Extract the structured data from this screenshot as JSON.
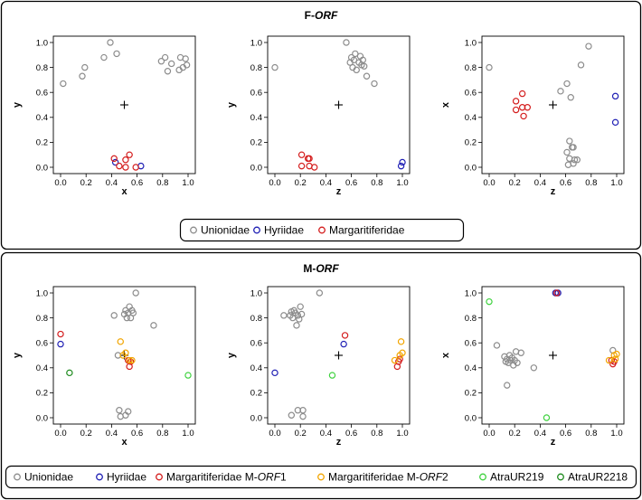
{
  "colors": {
    "Unionidae": "#8c8c8c",
    "Hyriidae": "#1f1fb4",
    "Margaritiferidae": "#d41e1e",
    "Margaritiferidae M-ORF1": "#d41e1e",
    "Margaritiferidae M-ORF2": "#f2a500",
    "AtraUR219": "#3fd23f",
    "AtraUR2218": "#1d8a1d"
  },
  "panels": [
    {
      "title_prefix": "F-",
      "title_italic": "ORF",
      "legend": [
        {
          "key": "Unionidae",
          "label": "Unionidae"
        },
        {
          "key": "Hyriidae",
          "label": "Hyriidae"
        },
        {
          "key": "Margaritiferidae",
          "label": "Margaritiferidae"
        }
      ]
    },
    {
      "title_prefix": "M-",
      "title_italic": "ORF",
      "legend": [
        {
          "key": "Unionidae",
          "label": "Unionidae"
        },
        {
          "key": "Hyriidae",
          "label": "Hyriidae"
        },
        {
          "key": "Margaritiferidae M-ORF1",
          "label": "Margaritiferidae M-",
          "italic": "ORF",
          "suffix": "1"
        },
        {
          "key": "Margaritiferidae M-ORF2",
          "label": "Margaritiferidae M-",
          "italic": "ORF",
          "suffix": "2"
        },
        {
          "key": "AtraUR219",
          "label": "AtraUR219"
        },
        {
          "key": "AtraUR2218",
          "label": "AtraUR2218"
        }
      ]
    }
  ],
  "chart_data": [
    {
      "type": "scatter",
      "panel": 0,
      "title": "F-ORF",
      "xlabel": "x",
      "ylabel": "y",
      "xlim": [
        0,
        1
      ],
      "ylim": [
        0,
        1
      ],
      "ticks": [
        "0.0",
        "0.2",
        "0.4",
        "0.6",
        "0.8",
        "1.0"
      ],
      "centroid": [
        0.5,
        0.5
      ],
      "series": [
        {
          "name": "Unionidae",
          "points": [
            [
              0.02,
              0.67
            ],
            [
              0.17,
              0.73
            ],
            [
              0.19,
              0.8
            ],
            [
              0.34,
              0.88
            ],
            [
              0.39,
              1.0
            ],
            [
              0.44,
              0.91
            ],
            [
              0.79,
              0.85
            ],
            [
              0.82,
              0.88
            ],
            [
              0.84,
              0.77
            ],
            [
              0.87,
              0.83
            ],
            [
              0.93,
              0.78
            ],
            [
              0.94,
              0.88
            ],
            [
              0.96,
              0.8
            ],
            [
              0.98,
              0.87
            ],
            [
              0.99,
              0.82
            ]
          ]
        },
        {
          "name": "Hyriidae",
          "points": [
            [
              0.43,
              0.04
            ],
            [
              0.63,
              0.01
            ]
          ]
        },
        {
          "name": "Margaritiferidae",
          "points": [
            [
              0.42,
              0.07
            ],
            [
              0.46,
              0.01
            ],
            [
              0.51,
              0.06
            ],
            [
              0.51,
              0.0
            ],
            [
              0.54,
              0.1
            ],
            [
              0.59,
              0.0
            ]
          ]
        }
      ]
    },
    {
      "type": "scatter",
      "panel": 0,
      "title": "",
      "xlabel": "z",
      "ylabel": "y",
      "xlim": [
        0,
        1
      ],
      "ylim": [
        0,
        1
      ],
      "ticks": [
        "0.0",
        "0.2",
        "0.4",
        "0.6",
        "0.8",
        "1.0"
      ],
      "centroid": [
        0.5,
        0.5
      ],
      "series": [
        {
          "name": "Unionidae",
          "points": [
            [
              0.0,
              0.8
            ],
            [
              0.56,
              1.0
            ],
            [
              0.59,
              0.84
            ],
            [
              0.6,
              0.88
            ],
            [
              0.61,
              0.8
            ],
            [
              0.62,
              0.86
            ],
            [
              0.63,
              0.91
            ],
            [
              0.64,
              0.78
            ],
            [
              0.66,
              0.84
            ],
            [
              0.67,
              0.89
            ],
            [
              0.68,
              0.82
            ],
            [
              0.69,
              0.86
            ],
            [
              0.7,
              0.81
            ],
            [
              0.72,
              0.73
            ],
            [
              0.78,
              0.67
            ]
          ]
        },
        {
          "name": "Hyriidae",
          "points": [
            [
              0.99,
              0.01
            ],
            [
              1.0,
              0.04
            ]
          ]
        },
        {
          "name": "Margaritiferidae",
          "points": [
            [
              0.21,
              0.1
            ],
            [
              0.21,
              0.01
            ],
            [
              0.26,
              0.07
            ],
            [
              0.27,
              0.07
            ],
            [
              0.27,
              0.01
            ],
            [
              0.31,
              0.0
            ]
          ]
        }
      ]
    },
    {
      "type": "scatter",
      "panel": 0,
      "title": "",
      "xlabel": "z",
      "ylabel": "x",
      "xlim": [
        0,
        1
      ],
      "ylim": [
        0,
        1
      ],
      "ticks": [
        "0.0",
        "0.2",
        "0.4",
        "0.6",
        "0.8",
        "1.0"
      ],
      "centroid": [
        0.5,
        0.5
      ],
      "series": [
        {
          "name": "Unionidae",
          "points": [
            [
              0.0,
              0.8
            ],
            [
              0.56,
              0.61
            ],
            [
              0.61,
              0.67
            ],
            [
              0.64,
              0.56
            ],
            [
              0.63,
              0.21
            ],
            [
              0.65,
              0.16
            ],
            [
              0.66,
              0.16
            ],
            [
              0.61,
              0.12
            ],
            [
              0.63,
              0.07
            ],
            [
              0.67,
              0.06
            ],
            [
              0.69,
              0.06
            ],
            [
              0.66,
              0.03
            ],
            [
              0.62,
              0.02
            ],
            [
              0.72,
              0.82
            ],
            [
              0.78,
              0.97
            ]
          ]
        },
        {
          "name": "Hyriidae",
          "points": [
            [
              0.99,
              0.57
            ],
            [
              0.99,
              0.36
            ]
          ]
        },
        {
          "name": "Margaritiferidae",
          "points": [
            [
              0.21,
              0.53
            ],
            [
              0.21,
              0.46
            ],
            [
              0.26,
              0.59
            ],
            [
              0.26,
              0.48
            ],
            [
              0.3,
              0.48
            ],
            [
              0.27,
              0.41
            ]
          ]
        }
      ]
    },
    {
      "type": "scatter",
      "panel": 1,
      "title": "M-ORF",
      "xlabel": "x",
      "ylabel": "y",
      "xlim": [
        0,
        1
      ],
      "ylim": [
        0,
        1
      ],
      "ticks": [
        "0.0",
        "0.2",
        "0.4",
        "0.6",
        "0.8",
        "1.0"
      ],
      "centroid": [
        0.5,
        0.5
      ],
      "series": [
        {
          "name": "Unionidae",
          "points": [
            [
              0.42,
              0.82
            ],
            [
              0.5,
              0.83
            ],
            [
              0.51,
              0.86
            ],
            [
              0.52,
              0.8
            ],
            [
              0.53,
              0.84
            ],
            [
              0.54,
              0.89
            ],
            [
              0.55,
              0.8
            ],
            [
              0.56,
              0.86
            ],
            [
              0.57,
              0.84
            ],
            [
              0.59,
              1.0
            ],
            [
              0.45,
              0.5
            ],
            [
              0.73,
              0.74
            ],
            [
              0.46,
              0.06
            ],
            [
              0.47,
              0.01
            ],
            [
              0.51,
              0.02
            ],
            [
              0.53,
              0.05
            ]
          ]
        },
        {
          "name": "Hyriidae",
          "points": [
            [
              0.0,
              0.59
            ]
          ]
        },
        {
          "name": "Margaritiferidae M-ORF1",
          "points": [
            [
              0.0,
              0.67
            ],
            [
              0.53,
              0.46
            ],
            [
              0.54,
              0.41
            ],
            [
              0.55,
              0.45
            ]
          ]
        },
        {
          "name": "Margaritiferidae M-ORF2",
          "points": [
            [
              0.47,
              0.61
            ],
            [
              0.49,
              0.5
            ],
            [
              0.51,
              0.52
            ],
            [
              0.54,
              0.46
            ],
            [
              0.56,
              0.46
            ]
          ]
        },
        {
          "name": "AtraUR219",
          "points": [
            [
              1.0,
              0.34
            ]
          ]
        },
        {
          "name": "AtraUR2218",
          "points": [
            [
              0.07,
              0.36
            ]
          ]
        }
      ]
    },
    {
      "type": "scatter",
      "panel": 1,
      "title": "",
      "xlabel": "z",
      "ylabel": "y",
      "xlim": [
        0,
        1
      ],
      "ylim": [
        0,
        1
      ],
      "ticks": [
        "0.0",
        "0.2",
        "0.4",
        "0.6",
        "0.8",
        "1.0"
      ],
      "centroid": [
        0.5,
        0.5
      ],
      "series": [
        {
          "name": "Unionidae",
          "points": [
            [
              0.07,
              0.82
            ],
            [
              0.12,
              0.82
            ],
            [
              0.13,
              0.85
            ],
            [
              0.14,
              0.8
            ],
            [
              0.15,
              0.86
            ],
            [
              0.16,
              0.84
            ],
            [
              0.17,
              0.74
            ],
            [
              0.18,
              0.82
            ],
            [
              0.19,
              0.79
            ],
            [
              0.2,
              0.89
            ],
            [
              0.21,
              0.83
            ],
            [
              0.35,
              1.0
            ],
            [
              0.13,
              0.02
            ],
            [
              0.18,
              0.06
            ],
            [
              0.22,
              0.06
            ],
            [
              0.22,
              0.01
            ]
          ]
        },
        {
          "name": "Hyriidae",
          "points": [
            [
              0.0,
              0.36
            ],
            [
              0.54,
              0.59
            ]
          ]
        },
        {
          "name": "Margaritiferidae M-ORF1",
          "points": [
            [
              0.55,
              0.66
            ],
            [
              0.96,
              0.41
            ],
            [
              0.97,
              0.45
            ],
            [
              0.98,
              0.47
            ]
          ]
        },
        {
          "name": "Margaritiferidae M-ORF2",
          "points": [
            [
              0.94,
              0.46
            ],
            [
              0.98,
              0.5
            ],
            [
              0.99,
              0.61
            ],
            [
              1.0,
              0.52
            ]
          ]
        },
        {
          "name": "AtraUR219",
          "points": [
            [
              0.45,
              0.34
            ]
          ]
        },
        {
          "name": "AtraUR2218",
          "points": []
        }
      ]
    },
    {
      "type": "scatter",
      "panel": 1,
      "title": "",
      "xlabel": "z",
      "ylabel": "x",
      "xlim": [
        0,
        1
      ],
      "ylim": [
        0,
        1
      ],
      "ticks": [
        "0.0",
        "0.2",
        "0.4",
        "0.6",
        "0.8",
        "1.0"
      ],
      "centroid": [
        0.5,
        0.5
      ],
      "series": [
        {
          "name": "Unionidae",
          "points": [
            [
              0.06,
              0.58
            ],
            [
              0.12,
              0.49
            ],
            [
              0.13,
              0.45
            ],
            [
              0.14,
              0.47
            ],
            [
              0.15,
              0.44
            ],
            [
              0.16,
              0.5
            ],
            [
              0.17,
              0.46
            ],
            [
              0.18,
              0.48
            ],
            [
              0.19,
              0.42
            ],
            [
              0.2,
              0.46
            ],
            [
              0.21,
              0.53
            ],
            [
              0.22,
              0.44
            ],
            [
              0.25,
              0.52
            ],
            [
              0.14,
              0.26
            ],
            [
              0.35,
              0.4
            ],
            [
              0.97,
              0.54
            ]
          ]
        },
        {
          "name": "Hyriidae",
          "points": [
            [
              0.52,
              1.0
            ],
            [
              0.54,
              1.0
            ]
          ]
        },
        {
          "name": "Margaritiferidae M-ORF1",
          "points": [
            [
              0.53,
              1.0
            ],
            [
              0.96,
              0.46
            ],
            [
              0.97,
              0.43
            ],
            [
              0.98,
              0.45
            ]
          ]
        },
        {
          "name": "Margaritiferidae M-ORF2",
          "points": [
            [
              0.94,
              0.46
            ],
            [
              0.98,
              0.5
            ],
            [
              0.99,
              0.47
            ],
            [
              1.0,
              0.51
            ]
          ]
        },
        {
          "name": "AtraUR219",
          "points": [
            [
              0.0,
              0.93
            ],
            [
              0.45,
              0.0
            ]
          ]
        },
        {
          "name": "AtraUR2218",
          "points": []
        }
      ]
    }
  ]
}
